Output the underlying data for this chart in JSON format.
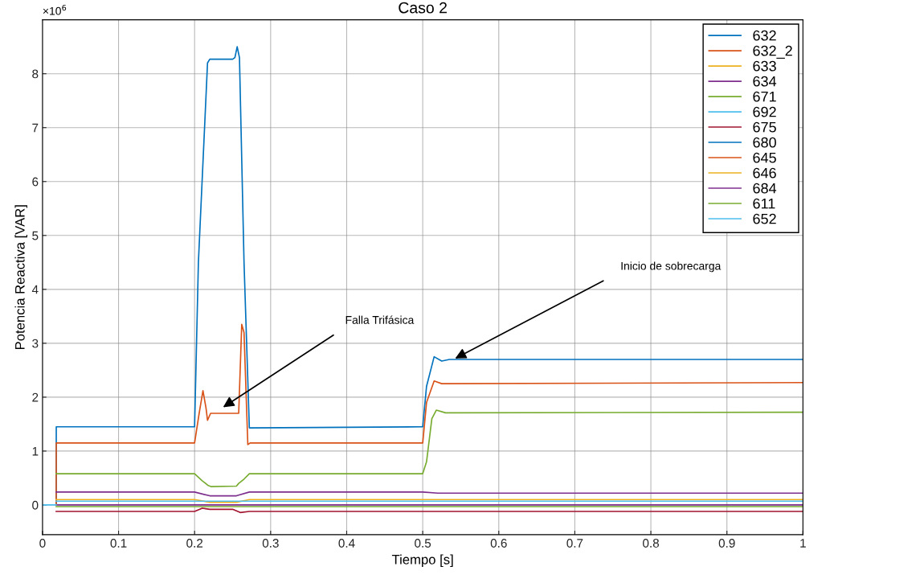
{
  "chart_data": {
    "type": "line",
    "title": "Caso 2",
    "xlabel": "Tiempo [s]",
    "ylabel": "Potencia Reactiva [VAR]",
    "annotations": [
      "×10$^{6}$",
      "Falla Trifásica",
      "Inicio de sobrecarga"
    ],
    "xlim": [
      0,
      1
    ],
    "xticks": [
      0,
      0.1,
      0.2,
      0.3,
      0.4,
      0.5,
      0.6,
      0.7,
      0.8,
      0.9,
      1
    ],
    "ylim": [
      -0.55,
      9
    ],
    "yticks": [
      0,
      1,
      2,
      3,
      4,
      5,
      6,
      7,
      8
    ],
    "grid": true,
    "legend": "top right",
    "line_style": "solid",
    "marker": "none",
    "series": [
      {
        "name": "632",
        "color": "#0072bd",
        "x": [
          0.018,
          0.0181,
          0.2,
          0.205,
          0.217,
          0.22,
          0.25,
          0.253,
          0.256,
          0.259,
          0.265,
          0.272,
          0.5,
          0.505,
          0.515,
          0.525,
          0.535,
          1
        ],
        "values": [
          0,
          1.45,
          1.45,
          4.5,
          8.2,
          8.27,
          8.27,
          8.3,
          8.5,
          8.3,
          4.5,
          1.43,
          1.45,
          2.2,
          2.75,
          2.67,
          2.7,
          2.7
        ]
      },
      {
        "name": "632_2",
        "color": "#d95319",
        "x": [
          0.018,
          0.0181,
          0.2,
          0.206,
          0.211,
          0.215,
          0.217,
          0.221,
          0.258,
          0.262,
          0.265,
          0.27,
          0.273,
          0.5,
          0.505,
          0.515,
          0.525,
          1
        ],
        "values": [
          0,
          1.15,
          1.15,
          1.7,
          2.12,
          1.8,
          1.57,
          1.7,
          1.7,
          3.35,
          3.2,
          1.12,
          1.15,
          1.15,
          1.9,
          2.3,
          2.25,
          2.27
        ]
      },
      {
        "name": "633",
        "color": "#edb120",
        "x": [
          0.018,
          0.2,
          0.22,
          0.255,
          0.272,
          1
        ],
        "values": [
          0.1,
          0.1,
          0.05,
          0.05,
          0.1,
          0.1
        ]
      },
      {
        "name": "634",
        "color": "#7e2f8e",
        "x": [
          0.018,
          0.2,
          0.22,
          0.255,
          0.272,
          0.5,
          0.52,
          1
        ],
        "values": [
          0.24,
          0.24,
          0.17,
          0.17,
          0.24,
          0.24,
          0.22,
          0.22
        ]
      },
      {
        "name": "671",
        "color": "#77ac30",
        "x": [
          0.018,
          0.2,
          0.21,
          0.218,
          0.222,
          0.255,
          0.258,
          0.265,
          0.272,
          0.5,
          0.505,
          0.512,
          0.518,
          0.53,
          1
        ],
        "values": [
          0.58,
          0.58,
          0.45,
          0.36,
          0.34,
          0.35,
          0.4,
          0.48,
          0.58,
          0.58,
          0.8,
          1.6,
          1.76,
          1.71,
          1.72
        ]
      },
      {
        "name": "692",
        "color": "#4dbeee",
        "x": [
          0.018,
          1
        ],
        "values": [
          0.07,
          0.07
        ]
      },
      {
        "name": "675",
        "color": "#a2142f",
        "x": [
          0.018,
          0.2,
          0.21,
          0.22,
          0.25,
          0.26,
          0.272,
          1
        ],
        "values": [
          -0.12,
          -0.12,
          -0.06,
          -0.08,
          -0.08,
          -0.14,
          -0.12,
          -0.12
        ]
      },
      {
        "name": "680",
        "color": "#0072bd"
      },
      {
        "name": "645",
        "color": "#d95319"
      },
      {
        "name": "646",
        "color": "#edb120"
      },
      {
        "name": "684",
        "color": "#7e2f8e",
        "x": [
          0.018,
          1
        ],
        "values": [
          0,
          0
        ]
      },
      {
        "name": "611",
        "color": "#77ac30",
        "x": [
          0.018,
          1
        ],
        "values": [
          -0.03,
          -0.03
        ]
      },
      {
        "name": "652",
        "color": "#4dbeee",
        "x": [
          0,
          0.018
        ],
        "values": [
          0,
          0
        ]
      }
    ]
  }
}
